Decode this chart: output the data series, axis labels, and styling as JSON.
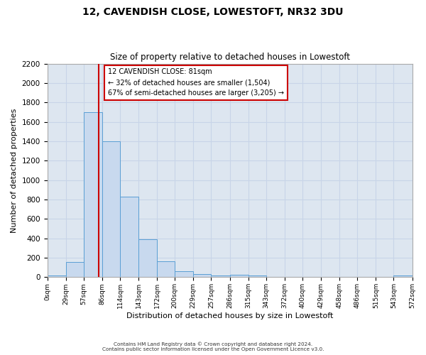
{
  "title": "12, CAVENDISH CLOSE, LOWESTOFT, NR32 3DU",
  "subtitle": "Size of property relative to detached houses in Lowestoft",
  "xlabel": "Distribution of detached houses by size in Lowestoft",
  "ylabel": "Number of detached properties",
  "bar_color": "#c8d9ee",
  "bar_edge_color": "#5a9fd4",
  "bin_edges": [
    0,
    29,
    57,
    86,
    114,
    143,
    172,
    200,
    229,
    257,
    286,
    315,
    343,
    372,
    400,
    429,
    458,
    486,
    515,
    543,
    572
  ],
  "bar_heights": [
    20,
    155,
    1700,
    1400,
    830,
    390,
    165,
    65,
    30,
    20,
    25,
    15,
    0,
    0,
    0,
    0,
    0,
    0,
    0,
    20
  ],
  "tick_labels": [
    "0sqm",
    "29sqm",
    "57sqm",
    "86sqm",
    "114sqm",
    "143sqm",
    "172sqm",
    "200sqm",
    "229sqm",
    "257sqm",
    "286sqm",
    "315sqm",
    "343sqm",
    "372sqm",
    "400sqm",
    "429sqm",
    "458sqm",
    "486sqm",
    "515sqm",
    "543sqm",
    "572sqm"
  ],
  "ylim": [
    0,
    2200
  ],
  "yticks": [
    0,
    200,
    400,
    600,
    800,
    1000,
    1200,
    1400,
    1600,
    1800,
    2000,
    2200
  ],
  "vline_x": 81,
  "vline_color": "#cc0000",
  "annotation_title": "12 CAVENDISH CLOSE: 81sqm",
  "annotation_line1": "← 32% of detached houses are smaller (1,504)",
  "annotation_line2": "67% of semi-detached houses are larger (3,205) →",
  "annotation_box_facecolor": "#ffffff",
  "annotation_box_edgecolor": "#cc0000",
  "footer_line1": "Contains HM Land Registry data © Crown copyright and database right 2024.",
  "footer_line2": "Contains public sector information licensed under the Open Government Licence v3.0.",
  "grid_color": "#c8d4e8",
  "fig_facecolor": "#ffffff",
  "ax_facecolor": "#dde6f0"
}
